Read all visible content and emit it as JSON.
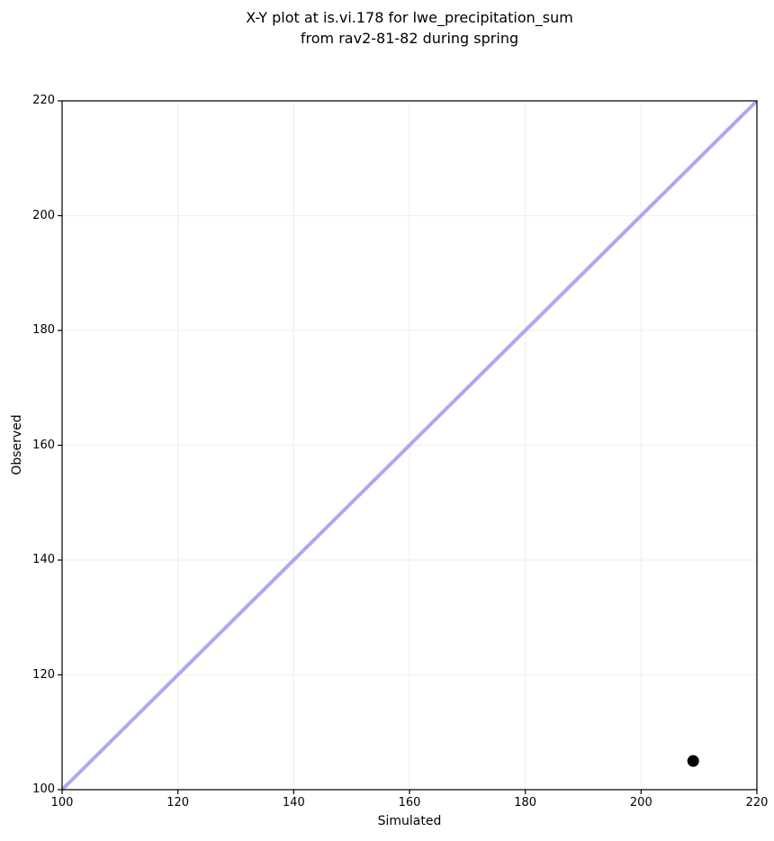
{
  "chart_data": {
    "type": "scatter",
    "title": "X-Y plot at is.vi.178 for lwe_precipitation_sum\nfrom rav2-81-82 during spring",
    "title_lines": [
      "X-Y plot at is.vi.178 for lwe_precipitation_sum",
      "from rav2-81-82 during spring"
    ],
    "xlabel": "Simulated",
    "ylabel": "Observed",
    "xlim": [
      100,
      220
    ],
    "ylim": [
      100,
      220
    ],
    "xticks": [
      100,
      120,
      140,
      160,
      180,
      200,
      220
    ],
    "yticks": [
      100,
      120,
      140,
      160,
      180,
      200,
      220
    ],
    "grid": true,
    "series": [
      {
        "name": "identity-line",
        "type": "line",
        "x": [
          100,
          220
        ],
        "y": [
          100,
          220
        ],
        "color": "#aaaaf0",
        "line_width": 4
      },
      {
        "name": "observations",
        "type": "scatter",
        "x": [
          209
        ],
        "y": [
          105
        ],
        "color": "#000000",
        "marker": "circle",
        "marker_diameter": 13
      }
    ],
    "colors": {
      "grid": "#f0f0f0",
      "spine": "#000000",
      "background": "#ffffff",
      "text": "#000000"
    }
  }
}
